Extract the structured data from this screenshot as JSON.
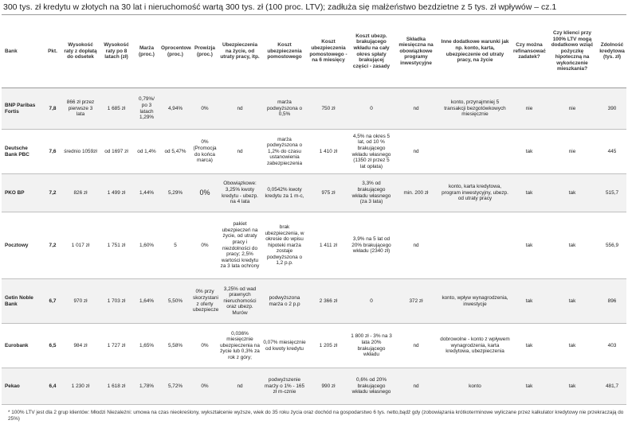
{
  "title": "300 tys. zł kredytu w złotych na 30 lat i nieruchomość wartą 300 tys. zł (100 proc. LTV); zadłuża się małżeństwo bezdzietne z 5 tys. zł wpływów – cz.1",
  "headers": [
    "Bank",
    "Pkt.",
    "Wysokość raty z dopłatą do odsetek",
    "Wysokość raty po 8 latach (zł)",
    "Marża (proc.)",
    "Oprocentowanie (proc.)",
    "Prowizja (proc.)",
    "Ubezpieczenia na życie, od utraty pracy, itp.",
    "Koszt ubezpieczenia pomostowego",
    "Koszt ubezpieczenia pomostowego - na 6 miesięcy",
    "Koszt ubezp. brakującego wkładu na cały okres spłaty brakującej części - zasady",
    "Składka miesięczna na obowiązkowe programy inwestycyjne",
    "Inne dodatkowe warunki jak np. konto, karta, ubezpieczenie od utraty pracy, na życie",
    "Czy można refinansować zadatek?",
    "Czy klienci przy 100% LTV mogą dodatkowo wziąć pożyczkę hipoteczną na wykończenie mieszkania?",
    "Zdolność kredytowa (tys. zł)"
  ],
  "rows": [
    {
      "bank": "BNP Paribas Fortis",
      "pkt": "7,8",
      "rata_doplata": "866 zł przez pierwsze 3 lata",
      "rata_8": "1 685 zł",
      "marza": "0,79%/ po 3 latach 1,29%",
      "oproc": "4,94%",
      "prowizja": "0%",
      "ubezp_zycie": "nd",
      "koszt_pomost": "marża podwyższona o 0,5%",
      "pomost_6m": "750 zł",
      "brak_wklad": "0",
      "skladka": "nd",
      "inne": "konto, przynajmniej 5 transakcji bezgotówkowych miesięcznie",
      "zadatek": "nie",
      "ltv": "nie",
      "zdolnosc": "390"
    },
    {
      "bank": "Deutsche Bank PBC",
      "pkt": "7,6",
      "rata_doplata": "średnio 1059zł",
      "rata_8": "od 1697 zł",
      "marza": "od 1,4%",
      "oproc": "od 5,47%",
      "prowizja": "0% (Promocja do końca marca)",
      "ubezp_zycie": "nd",
      "koszt_pomost": "marża podwyższona o 1,2% do czasu ustanowienia zabezpieczenia",
      "pomost_6m": "1 410 zł",
      "brak_wklad": "4,5% na okres 5 lat, od 10 % brakującego wkładu własnego (1350 zł przez 5 lat opłata)",
      "skladka": "nd",
      "inne": "",
      "zadatek": "tak",
      "ltv": "nie",
      "zdolnosc": "445"
    },
    {
      "bank": "PKO BP",
      "pkt": "7,2",
      "rata_doplata": "826 zł",
      "rata_8": "1 499 zł",
      "marza": "1,44%",
      "oproc": "5,29%",
      "prowizja": "0%",
      "ubezp_zycie": "Obowiązkowe: 3,25% kwoty kredytu - ubezp. na 4 lata",
      "koszt_pomost": "0,0542% kwoty kredytu za 1 m-c,",
      "pomost_6m": "975 zł",
      "brak_wklad": "3,3% od brakującego wkładu własnego (za 3 lata)",
      "skladka": "min. 200 zł",
      "inne": "konto, karta kredytowa, program inwestycyjny, ubezp. od utraty pracy",
      "zadatek": "tak",
      "ltv": "tak",
      "zdolnosc": "515,7"
    },
    {
      "bank": "Pocztowy",
      "pkt": "7,2",
      "rata_doplata": "1 017 zł",
      "rata_8": "1 751 zł",
      "marza": "1,60%",
      "oproc": "5",
      "prowizja": "0%",
      "ubezp_zycie": "pakiet ubezpieczeń na życie, od utraty pracy i niezdolności do pracy; 2,5% wartości kredytu za 3 lata ochrony",
      "koszt_pomost": "brak ubezpieczenia, w okresie do wpisu hipoteki marża zostaje podwyższona o 1,2 p.p.",
      "pomost_6m": "1 411 zł",
      "brak_wklad": "3,9% na 5 lat od 20% brakującego wkładu (2340 zł)",
      "skladka": "nd",
      "inne": "",
      "zadatek": "tak",
      "ltv": "tak",
      "zdolnosc": "556,9"
    },
    {
      "bank": "Getin Noble Bank",
      "pkt": "6,7",
      "rata_doplata": "970 zł",
      "rata_8": "1 703 zł",
      "marza": "1,64%",
      "oproc": "5,50%",
      "prowizja": "0% przy skorzystaniu z oferty ubezpieczeniowej",
      "ubezp_zycie": "3,25% od wad prawnych nieruchomości oraz ubezp. Murów",
      "koszt_pomost": "podwyższona marża o 2 p.p",
      "pomost_6m": "2 366 zł",
      "brak_wklad": "0",
      "skladka": "372 zł",
      "inne": "konto, wpływ wynagrodzenia, inwestycje",
      "zadatek": "tak",
      "ltv": "tak",
      "zdolnosc": "896"
    },
    {
      "bank": "Eurobank",
      "pkt": "6,5",
      "rata_doplata": "984 zł",
      "rata_8": "1 727 zł",
      "marza": "1,65%",
      "oproc": "5,58%",
      "prowizja": "0%",
      "ubezp_zycie": "0,036% miesięcznie ubezpieczenia na życie lub 0,3% za rok z góry;",
      "koszt_pomost": "0,07% miesięcznie od kwoty kredytu",
      "pomost_6m": "1 205 zł",
      "brak_wklad": "1 800 zł - 3% na 3 lata 20% brakującego wkładu",
      "skladka": "nd",
      "inne": "dobrowolne - konto z wpływem wynagrodzenia, karta kredytowa, ubezpieczenia",
      "zadatek": "tak",
      "ltv": "tak",
      "zdolnosc": "403"
    },
    {
      "bank": "Pekao",
      "pkt": "6,4",
      "rata_doplata": "1 230 zł",
      "rata_8": "1 618 zł",
      "marza": "1,78%",
      "oproc": "5,72%",
      "prowizja": "0%",
      "ubezp_zycie": "nd",
      "koszt_pomost": "podwyższenie marży o 1% - 165 zł m-cznie",
      "pomost_6m": "990 zł",
      "brak_wklad": "0,6% od 20% brakującego wkładu własnego",
      "skladka": "nd",
      "inne": "konto",
      "zadatek": "tak",
      "ltv": "tak",
      "zdolnosc": "481,7"
    }
  ],
  "footnote": "* 100% LTV jest dla 2 grup klientów: Młodzi Niezależni: umowa na czas nieokreślony, wykształcenie wyższe, wiek do 35 roku życia oraz dochód na gospodarstwo 6 tys. netto,bądź gdy (zobowiązania krótkoterminowe wyliczane przez kalkulator kredytowy nie przekraczają do 25%)"
}
